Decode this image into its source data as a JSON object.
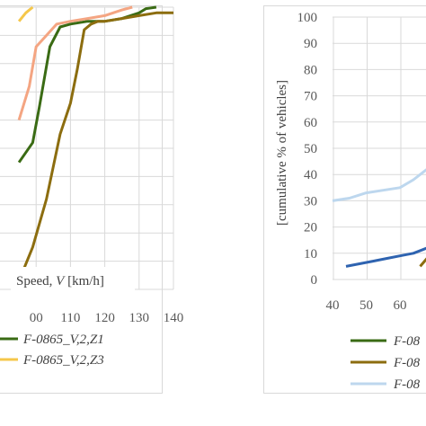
{
  "chart_data": [
    {
      "type": "line",
      "xlabel_prefix": "Speed, ",
      "xlabel_var": "V",
      "xlabel_unit": " [km/h]",
      "x_ticks": [
        "00",
        "110",
        "120",
        "130",
        "140"
      ],
      "xlim": [
        95,
        140
      ],
      "ylim": [
        0,
        100
      ],
      "grid": true,
      "legend_placement": "bottom",
      "series": [
        {
          "name": "F-0865_V,2,Z1",
          "color": "#3a6b14",
          "points": [
            [
              95,
              45
            ],
            [
              99,
              52
            ],
            [
              101,
              65
            ],
            [
              104,
              86
            ],
            [
              107,
              93
            ],
            [
              110,
              94
            ],
            [
              115,
              95
            ],
            [
              120,
              95
            ],
            [
              125,
              96
            ],
            [
              130,
              98
            ],
            [
              132,
              99.5
            ],
            [
              135,
              100
            ]
          ]
        },
        {
          "name": "",
          "color": "#8c6d0f",
          "points": [
            [
              95,
              3
            ],
            [
              99,
              15
            ],
            [
              103,
              32
            ],
            [
              107,
              55
            ],
            [
              110,
              66
            ],
            [
              112,
              78
            ],
            [
              114,
              92
            ],
            [
              116,
              94
            ],
            [
              118,
              95
            ],
            [
              120,
              95
            ],
            [
              125,
              96
            ],
            [
              130,
              97
            ],
            [
              135,
              98
            ],
            [
              140,
              98
            ]
          ]
        },
        {
          "name": "",
          "color": "#f4a582",
          "points": [
            [
              95,
              60
            ],
            [
              98,
              72
            ],
            [
              100,
              86
            ],
            [
              103,
              90
            ],
            [
              106,
              94
            ],
            [
              110,
              95
            ],
            [
              115,
              96
            ],
            [
              120,
              97
            ],
            [
              125,
              99
            ],
            [
              128,
              100
            ]
          ]
        },
        {
          "name": "F-0865_V,2,Z3",
          "color": "#f5c74a",
          "points": [
            [
              95,
              95
            ],
            [
              97,
              98
            ],
            [
              99,
              100
            ]
          ]
        }
      ]
    },
    {
      "type": "line",
      "ylabel": "[cumulative % of vehicles]",
      "x_ticks": [
        "40",
        "50",
        "60"
      ],
      "y_ticks": [
        "0",
        "10",
        "20",
        "30",
        "40",
        "50",
        "60",
        "70",
        "80",
        "90",
        "100"
      ],
      "xlim": [
        40,
        70
      ],
      "ylim": [
        0,
        100
      ],
      "grid": true,
      "legend_placement": "bottom",
      "series": [
        {
          "name": "F-08",
          "color": "#3a6b14",
          "points": []
        },
        {
          "name": "F-08",
          "color": "#8c6d0f",
          "points": [
            [
              66,
              5
            ],
            [
              68,
              8
            ],
            [
              70,
              10
            ]
          ]
        },
        {
          "name": "F-08",
          "color": "#bdd7ee",
          "points": [
            [
              40,
              30
            ],
            [
              45,
              31
            ],
            [
              50,
              33
            ],
            [
              55,
              34
            ],
            [
              60,
              35
            ],
            [
              64,
              38
            ],
            [
              66,
              40
            ],
            [
              70,
              44
            ]
          ]
        },
        {
          "name": "",
          "color": "#2e63b0",
          "points": [
            [
              44,
              5
            ],
            [
              48,
              6
            ],
            [
              52,
              7
            ],
            [
              56,
              8
            ],
            [
              60,
              9
            ],
            [
              64,
              10
            ],
            [
              68,
              12
            ],
            [
              70,
              13
            ]
          ]
        }
      ]
    }
  ]
}
